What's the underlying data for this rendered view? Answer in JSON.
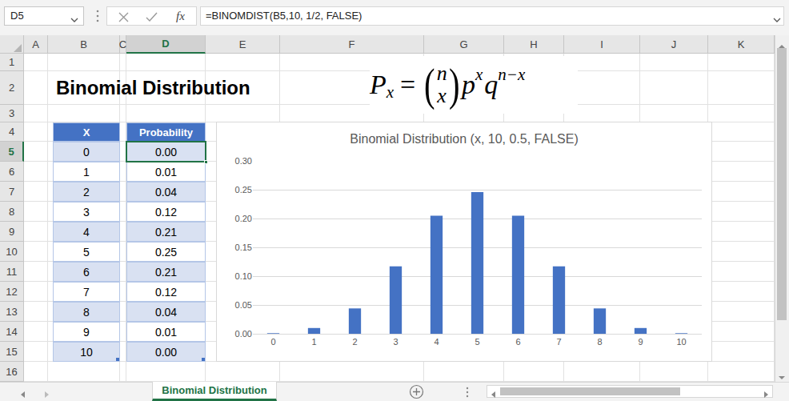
{
  "name_box": "D5",
  "function_label": "fx",
  "formula": "=BINOMDIST(B5,10, 1/2, FALSE)",
  "columns": [
    "A",
    "B",
    "C",
    "D",
    "E",
    "F",
    "G",
    "H",
    "I",
    "J",
    "K"
  ],
  "rows": [
    1,
    2,
    3,
    4,
    5,
    6,
    7,
    8,
    9,
    10,
    11,
    12,
    13,
    14,
    15,
    16
  ],
  "heading": "Binomial Distribution",
  "formula_image": {
    "lhs": "P",
    "lhs_sub": "x",
    "equals": "=",
    "binom_top": "n",
    "binom_bottom": "x",
    "p": "p",
    "p_sup": "x",
    "q": "q",
    "q_sup": "n−x"
  },
  "table": {
    "header": [
      "X",
      "Probability"
    ],
    "rows": [
      [
        0,
        "0.00"
      ],
      [
        1,
        "0.01"
      ],
      [
        2,
        "0.04"
      ],
      [
        3,
        "0.12"
      ],
      [
        4,
        "0.21"
      ],
      [
        5,
        "0.25"
      ],
      [
        6,
        "0.21"
      ],
      [
        7,
        "0.12"
      ],
      [
        8,
        "0.04"
      ],
      [
        9,
        "0.01"
      ],
      [
        10,
        "0.00"
      ]
    ]
  },
  "sheet_tab": "Binomial Distribution",
  "chart_data": {
    "type": "bar",
    "title": "Binomial Distribution (x, 10, 0.5, FALSE)",
    "categories": [
      "0",
      "1",
      "2",
      "3",
      "4",
      "5",
      "6",
      "7",
      "8",
      "9",
      "10"
    ],
    "values": [
      0.001,
      0.01,
      0.044,
      0.117,
      0.205,
      0.246,
      0.205,
      0.117,
      0.044,
      0.01,
      0.001
    ],
    "color": "#4472c4",
    "ylim": [
      0,
      0.3
    ],
    "yticks": [
      {
        "value": 0,
        "label": "0.00"
      },
      {
        "value": 0.05,
        "label": "0.05"
      },
      {
        "value": 0.1,
        "label": "0.10"
      },
      {
        "value": 0.15,
        "label": "0.15"
      },
      {
        "value": 0.2,
        "label": "0.20"
      },
      {
        "value": 0.25,
        "label": "0.25"
      },
      {
        "value": 0.3,
        "label": "0.30"
      }
    ],
    "grid": true
  }
}
